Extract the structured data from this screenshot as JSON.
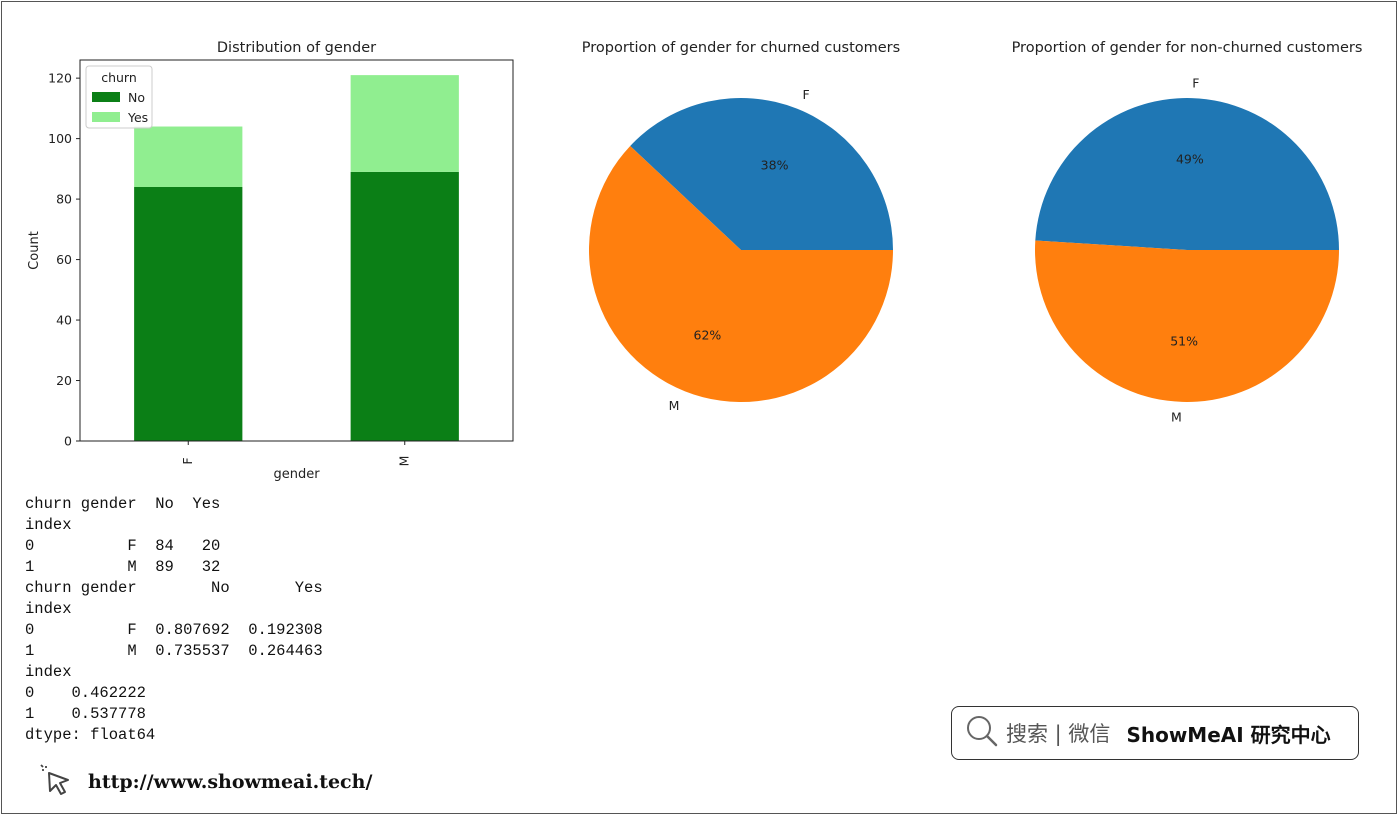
{
  "chart_data": [
    {
      "type": "bar",
      "stacked": true,
      "title": "Distribution of gender",
      "xlabel": "gender",
      "ylabel": "Count",
      "categories": [
        "F",
        "M"
      ],
      "series": [
        {
          "name": "No",
          "values": [
            84,
            89
          ],
          "color": "#0b7f16"
        },
        {
          "name": "Yes",
          "values": [
            20,
            32
          ],
          "color": "#90ee90"
        }
      ],
      "ylim": [
        0,
        126
      ],
      "yticks": [
        0,
        20,
        40,
        60,
        80,
        100,
        120
      ],
      "legend": {
        "title": "churn",
        "position": "top-left"
      },
      "grid": false
    },
    {
      "type": "pie",
      "title": "Proportion of gender for churned customers",
      "labels": [
        "F",
        "M"
      ],
      "values": [
        38,
        62
      ],
      "pct_labels": [
        "38%",
        "62%"
      ],
      "colors": [
        "#1f77b4",
        "#ff7f0e"
      ]
    },
    {
      "type": "pie",
      "title": "Proportion of gender for non-churned customers",
      "labels": [
        "F",
        "M"
      ],
      "values": [
        49,
        51
      ],
      "pct_labels": [
        "49%",
        "51%"
      ],
      "colors": [
        "#1f77b4",
        "#ff7f0e"
      ]
    }
  ],
  "console_output": "churn gender  No  Yes\nindex\n0          F  84   20\n1          M  89   32\nchurn gender        No       Yes\nindex\n0          F  0.807692  0.192308\n1          M  0.735537  0.264463\nindex\n0    0.462222\n1    0.537778\ndtype: float64",
  "footer": {
    "url": "http://www.showmeai.tech/",
    "icon": "cursor-click-icon"
  },
  "search_box": {
    "hint": "搜索 | 微信",
    "brand": "ShowMeAI 研究中心",
    "icon": "search-icon"
  }
}
